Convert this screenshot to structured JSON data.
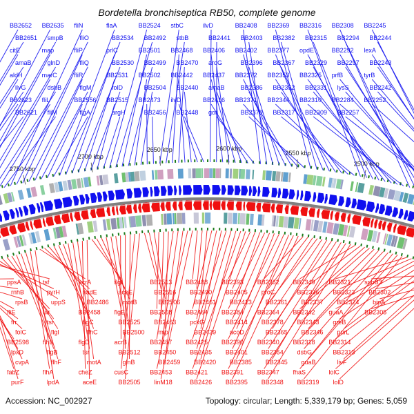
{
  "title": "Bordetella bronchiseptica RB50, complete genome",
  "footer": {
    "accession": "Accession: NC_002927",
    "summary": "Topology: circular; Length: 5,339,179 bp; Genes: 5,059"
  },
  "colors": {
    "forward": "#1010f0",
    "reverse": "#f01010",
    "backbone": "#808080",
    "tick": "#1a7a1a"
  },
  "kbp_ticks": [
    "2400 kbp",
    "2450 kbp",
    "2500 kbp",
    "2550 kbp",
    "2600 kbp",
    "2650 kbp",
    "2700 kbp",
    "2750 kbp",
    "2800 kbp"
  ],
  "forward_genes": [
    "BB2652",
    "BB2651",
    "citE",
    "amaB",
    "aldH",
    "ilvG",
    "BB2623",
    "BB2621",
    "BB2635",
    "smpB",
    "map",
    "glnD",
    "marC",
    "dsbB",
    "fliL",
    "fliM",
    "fliN",
    "fliO",
    "fliP",
    "fliQ",
    "fliR",
    "flgM",
    "BB2556",
    "flgA",
    "flaA",
    "BB2534",
    "prlC",
    "BB2530",
    "BB2531",
    "folD",
    "BB2515",
    "argH",
    "BB2524",
    "BB2492",
    "BB2501",
    "BB2499",
    "BB2502",
    "BB2504",
    "BB2473",
    "BB2456",
    "stbC",
    "stbB",
    "BB2468",
    "BB2470",
    "BB2442",
    "BB2440",
    "ilvD",
    "BB2448",
    "ilvD",
    "BB2441",
    "BB2406",
    "aroG",
    "BB2437",
    "amaB",
    "BB2416",
    "gor",
    "BB2408",
    "BB2403",
    "BB2402",
    "BB2396",
    "BB2372",
    "BB2386",
    "BB2371",
    "BB2370",
    "BB2369",
    "BB2382",
    "BB2377",
    "BB2367",
    "BB2353",
    "BB2352",
    "BB2344",
    "BB2317",
    "BB2316",
    "BB2315",
    "opdE",
    "BB2329",
    "BB2325",
    "BB2331",
    "BB2310",
    "BB2309",
    "BB2308",
    "BB2294",
    "BB2292",
    "BB2297",
    "prfB",
    "lysS",
    "BB2284",
    "BB2257",
    "BB2245",
    "BB2244",
    "lexA",
    "BB2243",
    "tyrB",
    "BB2242",
    "BB2252"
  ],
  "reverse_genes": [
    "ppsA",
    "rnhB",
    "rpsB",
    "fliE",
    "frr",
    "folC",
    "BB2598",
    "lpxD",
    "cvpA",
    "fabZ",
    "purF",
    "tsf",
    "pyrH",
    "uppS",
    "tar",
    "tsr",
    "flgI",
    "flhB",
    "flgB",
    "flhF",
    "flhA",
    "lpdA",
    "acrA",
    "nadE",
    "BB2486",
    "BB2458",
    "flgC",
    "flhC",
    "flgD",
    "tsr",
    "motA",
    "cheZ",
    "aceE",
    "flgI",
    "aceE",
    "motB",
    "flgE",
    "BB2525",
    "BB2500",
    "acrB",
    "BB2512",
    "glnB",
    "cusC",
    "BB2505",
    "BB2513",
    "BB2516",
    "BB2506",
    "BB2508",
    "BB2463",
    "mip",
    "BB2487",
    "BB2450",
    "BB2459",
    "BB2453",
    "linM18",
    "BB2488",
    "BB2490",
    "BB2461",
    "BB2464",
    "pckG",
    "BB2439",
    "BB2425",
    "BB2435",
    "BB2420",
    "BB2421",
    "BB2426",
    "BB2393",
    "BB2405",
    "BB2413",
    "BB2384",
    "BB2414",
    "acoD",
    "BB2390",
    "BB2401",
    "BB2385",
    "BB2391",
    "BB2395",
    "BB2362",
    "proC",
    "BB2361",
    "BB2364",
    "BB2378",
    "BB2365",
    "BB2340",
    "BB2354",
    "BB2345",
    "BB2347",
    "BB2348",
    "BB2349",
    "BB2336",
    "BB2337",
    "BB2342",
    "BB2343",
    "BB2346",
    "BB2318",
    "dsbG",
    "guaB",
    "fhaS",
    "BB2319",
    "BB2321",
    "BB2323",
    "BB2324",
    "guaA",
    "greB",
    "purL",
    "BB2314",
    "BB2313",
    "livF",
    "lolC",
    "lolD",
    "sphB3",
    "BB2302",
    "bipA",
    "BB2305"
  ]
}
